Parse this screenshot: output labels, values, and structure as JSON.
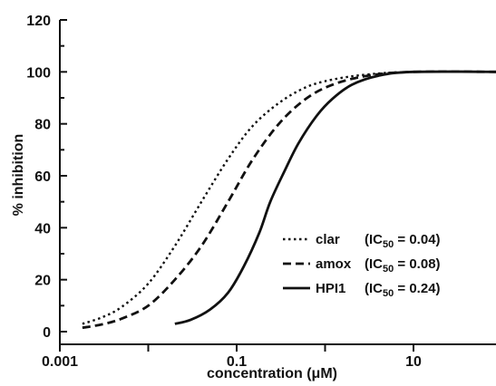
{
  "chart_data": {
    "type": "line",
    "xlabel": "concentration (μM)",
    "ylabel": "% inhibition",
    "xscale": "log",
    "xlim": [
      0.001,
      100
    ],
    "ylim": [
      0,
      120
    ],
    "x_ticks": [
      "0.001",
      "0.1",
      "10"
    ],
    "y_ticks": [
      "0",
      "20",
      "40",
      "60",
      "80",
      "100",
      "120"
    ],
    "legend_position": "lower-right",
    "series": [
      {
        "name": "clar",
        "ic50_label": "(IC50 = 0.04)",
        "line_style": "dotted",
        "color": "#111111",
        "x": [
          0.0018,
          0.003,
          0.005,
          0.01,
          0.02,
          0.04,
          0.08,
          0.15,
          0.3,
          0.6,
          1.2,
          3,
          10,
          100
        ],
        "y": [
          3.0,
          5.5,
          9.5,
          18.5,
          33,
          50,
          66.5,
          79,
          88,
          94,
          97,
          99,
          100,
          100
        ]
      },
      {
        "name": "amox",
        "ic50_label": "(IC50 = 0.08)",
        "line_style": "dashed",
        "color": "#111111",
        "x": [
          0.0018,
          0.003,
          0.005,
          0.01,
          0.02,
          0.04,
          0.08,
          0.15,
          0.3,
          0.6,
          1.2,
          3,
          10,
          100
        ],
        "y": [
          1.5,
          2.8,
          5.0,
          10,
          20,
          33,
          50,
          66,
          80,
          89.5,
          95,
          98.5,
          100,
          100
        ]
      },
      {
        "name": "HPI1",
        "ic50_label": "(IC50 = 0.24)",
        "line_style": "solid",
        "color": "#111111",
        "x": [
          0.02,
          0.03,
          0.05,
          0.08,
          0.12,
          0.18,
          0.24,
          0.35,
          0.5,
          0.8,
          1.2,
          2,
          4,
          10,
          100
        ],
        "y": [
          3.0,
          4.5,
          8.5,
          15,
          25,
          38,
          50,
          62,
          72.5,
          83,
          89.5,
          95,
          98.5,
          100,
          100
        ]
      }
    ]
  }
}
